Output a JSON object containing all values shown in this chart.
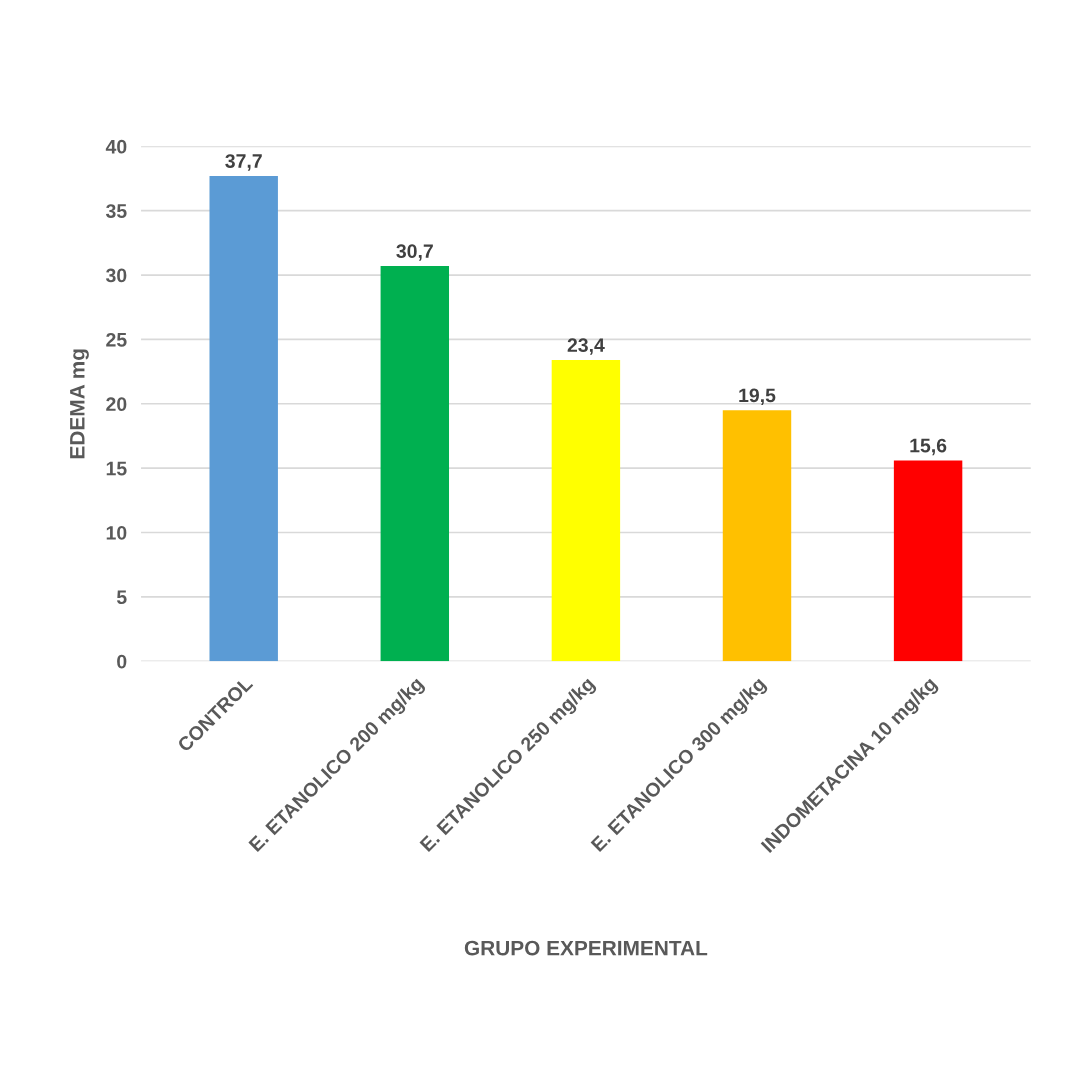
{
  "chart_data": {
    "type": "bar",
    "xlabel": "GRUPO EXPERIMENTAL",
    "ylabel": "EDEMA mg",
    "categories": [
      "CONTROL",
      "E. ETANOLICO 200 mg/kg",
      "E. ETANOLICO 250 mg/kg",
      "E. ETANOLICO 300 mg/kg",
      "INDOMETACINA 10 mg/kg"
    ],
    "values": [
      37.7,
      30.7,
      23.4,
      19.5,
      15.6
    ],
    "value_labels": [
      "37,7",
      "30,7",
      "23,4",
      "19,5",
      "15,6"
    ],
    "colors": [
      "#5b9bd5",
      "#00b050",
      "#ffff00",
      "#ffc000",
      "#ff0000"
    ],
    "ylim": [
      0,
      40
    ],
    "yticks": [
      0,
      5,
      10,
      15,
      20,
      25,
      30,
      35,
      40
    ],
    "grid": "y"
  }
}
